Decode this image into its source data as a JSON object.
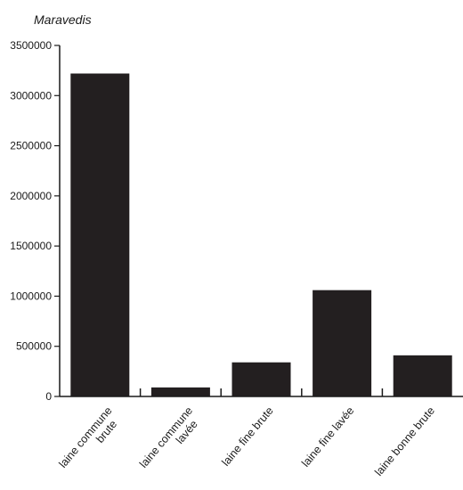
{
  "chart_data": {
    "type": "bar",
    "ylabel": "Maravedis",
    "xlabel": "",
    "ylim": [
      0,
      3500000
    ],
    "yticks": [
      "0",
      "500000",
      "1000000",
      "1500000",
      "2000000",
      "2500000",
      "3000000",
      "3500000"
    ],
    "categories": [
      [
        "laine commune",
        "brute"
      ],
      [
        "laine commune",
        "lavée"
      ],
      [
        "laine fine brute"
      ],
      [
        "laine fine lavée"
      ],
      [
        "laine bonne brute"
      ]
    ],
    "values": [
      3220000,
      90000,
      340000,
      1060000,
      410000
    ],
    "bar_color": "#231f20",
    "axis_color": "#1a1a1a"
  }
}
